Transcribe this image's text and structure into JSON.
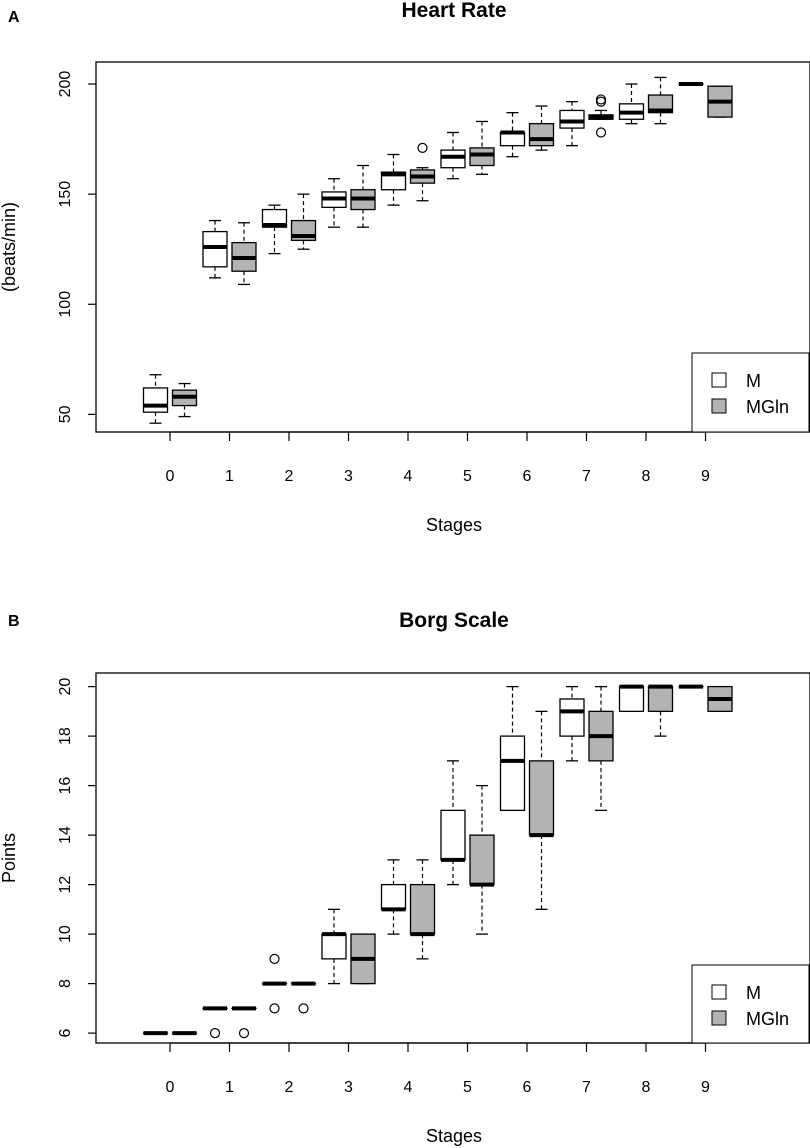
{
  "chart_data": [
    {
      "panel_label": "A",
      "type": "boxplot",
      "title": "Heart Rate",
      "xlabel": "Stages",
      "ylabel": "(beats/min)",
      "ylim": [
        42,
        210
      ],
      "yticks": [
        50,
        100,
        150,
        200
      ],
      "categories": [
        "0",
        "1",
        "2",
        "3",
        "4",
        "5",
        "6",
        "7",
        "8",
        "9"
      ],
      "legend": {
        "position": "bottom-right",
        "entries": [
          {
            "name": "M",
            "color": "#ffffff"
          },
          {
            "name": "MGln",
            "color": "#b3b3b3"
          }
        ]
      },
      "series": [
        {
          "name": "M",
          "color": "#ffffff",
          "boxes": [
            {
              "min": 46,
              "q1": 51,
              "median": 54,
              "q3": 62,
              "max": 68,
              "outliers": []
            },
            {
              "min": 112,
              "q1": 117,
              "median": 126,
              "q3": 133,
              "max": 138,
              "outliers": []
            },
            {
              "min": 123,
              "q1": 135,
              "median": 136,
              "q3": 143,
              "max": 145,
              "outliers": []
            },
            {
              "min": 135,
              "q1": 144,
              "median": 148,
              "q3": 151,
              "max": 157,
              "outliers": []
            },
            {
              "min": 145,
              "q1": 152,
              "median": 159,
              "q3": 160,
              "max": 168,
              "outliers": []
            },
            {
              "min": 157,
              "q1": 162,
              "median": 167,
              "q3": 170,
              "max": 178,
              "outliers": []
            },
            {
              "min": 167,
              "q1": 172,
              "median": 178,
              "q3": 178,
              "max": 187,
              "outliers": []
            },
            {
              "min": 172,
              "q1": 180,
              "median": 183,
              "q3": 188,
              "max": 192,
              "outliers": []
            },
            {
              "min": 182,
              "q1": 184,
              "median": 187,
              "q3": 191,
              "max": 200,
              "outliers": []
            },
            {
              "min": 200,
              "q1": 200,
              "median": 200,
              "q3": 200,
              "max": 200,
              "outliers": []
            }
          ]
        },
        {
          "name": "MGln",
          "color": "#b3b3b3",
          "boxes": [
            {
              "min": 49,
              "q1": 54,
              "median": 58,
              "q3": 61,
              "max": 64,
              "outliers": []
            },
            {
              "min": 109,
              "q1": 115,
              "median": 121,
              "q3": 128,
              "max": 137,
              "outliers": []
            },
            {
              "min": 125,
              "q1": 129,
              "median": 131,
              "q3": 138,
              "max": 150,
              "outliers": []
            },
            {
              "min": 135,
              "q1": 143,
              "median": 148,
              "q3": 152,
              "max": 163,
              "outliers": []
            },
            {
              "min": 147,
              "q1": 155,
              "median": 158,
              "q3": 161,
              "max": 162,
              "outliers": [
                171
              ]
            },
            {
              "min": 159,
              "q1": 163,
              "median": 168,
              "q3": 171,
              "max": 183,
              "outliers": []
            },
            {
              "min": 170,
              "q1": 172,
              "median": 175,
              "q3": 182,
              "max": 190,
              "outliers": []
            },
            {
              "min": 184,
              "q1": 184,
              "median": 185,
              "q3": 186,
              "max": 188,
              "outliers": [
                178,
                192,
                193
              ]
            },
            {
              "min": 182,
              "q1": 187,
              "median": 188,
              "q3": 195,
              "max": 203,
              "outliers": []
            },
            {
              "min": 185,
              "q1": 185,
              "median": 192,
              "q3": 199,
              "max": 199,
              "outliers": []
            }
          ]
        }
      ]
    },
    {
      "panel_label": "B",
      "type": "boxplot",
      "title": "Borg Scale",
      "xlabel": "Stages",
      "ylabel": "Points",
      "ylim": [
        5.6,
        20.55
      ],
      "yticks": [
        6,
        8,
        10,
        12,
        14,
        16,
        18,
        20
      ],
      "categories": [
        "0",
        "1",
        "2",
        "3",
        "4",
        "5",
        "6",
        "7",
        "8",
        "9"
      ],
      "legend": {
        "position": "bottom-right",
        "entries": [
          {
            "name": "M",
            "color": "#ffffff"
          },
          {
            "name": "MGln",
            "color": "#b3b3b3"
          }
        ]
      },
      "series": [
        {
          "name": "M",
          "color": "#ffffff",
          "boxes": [
            {
              "min": 6,
              "q1": 6,
              "median": 6,
              "q3": 6,
              "max": 6,
              "outliers": []
            },
            {
              "min": 7,
              "q1": 7,
              "median": 7,
              "q3": 7,
              "max": 7,
              "outliers": [
                6
              ]
            },
            {
              "min": 8,
              "q1": 8,
              "median": 8,
              "q3": 8,
              "max": 8,
              "outliers": [
                7,
                9
              ]
            },
            {
              "min": 8,
              "q1": 9,
              "median": 10,
              "q3": 10,
              "max": 11,
              "outliers": []
            },
            {
              "min": 10,
              "q1": 11,
              "median": 11,
              "q3": 12,
              "max": 13,
              "outliers": []
            },
            {
              "min": 12,
              "q1": 13,
              "median": 13,
              "q3": 15,
              "max": 17,
              "outliers": []
            },
            {
              "min": 15,
              "q1": 15,
              "median": 17,
              "q3": 18,
              "max": 20,
              "outliers": []
            },
            {
              "min": 17,
              "q1": 18,
              "median": 19,
              "q3": 19.5,
              "max": 20,
              "outliers": []
            },
            {
              "min": 19,
              "q1": 19,
              "median": 20,
              "q3": 20,
              "max": 20,
              "outliers": []
            },
            {
              "min": 20,
              "q1": 20,
              "median": 20,
              "q3": 20,
              "max": 20,
              "outliers": []
            }
          ]
        },
        {
          "name": "MGln",
          "color": "#b3b3b3",
          "boxes": [
            {
              "min": 6,
              "q1": 6,
              "median": 6,
              "q3": 6,
              "max": 6,
              "outliers": []
            },
            {
              "min": 7,
              "q1": 7,
              "median": 7,
              "q3": 7,
              "max": 7,
              "outliers": [
                6
              ]
            },
            {
              "min": 8,
              "q1": 8,
              "median": 8,
              "q3": 8,
              "max": 8,
              "outliers": [
                7
              ]
            },
            {
              "min": 8,
              "q1": 8,
              "median": 9,
              "q3": 10,
              "max": 10,
              "outliers": []
            },
            {
              "min": 9,
              "q1": 10,
              "median": 10,
              "q3": 12,
              "max": 13,
              "outliers": []
            },
            {
              "min": 10,
              "q1": 12,
              "median": 12,
              "q3": 14,
              "max": 16,
              "outliers": []
            },
            {
              "min": 11,
              "q1": 14,
              "median": 14,
              "q3": 17,
              "max": 19,
              "outliers": []
            },
            {
              "min": 15,
              "q1": 17,
              "median": 18,
              "q3": 19,
              "max": 20,
              "outliers": []
            },
            {
              "min": 18,
              "q1": 19,
              "median": 20,
              "q3": 20,
              "max": 20,
              "outliers": []
            },
            {
              "min": 19,
              "q1": 19,
              "median": 19.5,
              "q3": 20,
              "max": 20,
              "outliers": []
            }
          ]
        }
      ]
    }
  ]
}
